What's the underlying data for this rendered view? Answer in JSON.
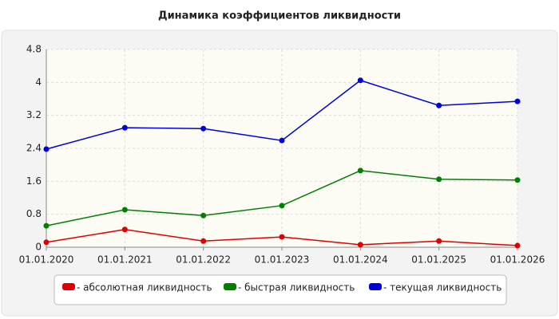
{
  "chart_data": {
    "type": "line",
    "title": "Динамика коэффициентов ликвидности",
    "categories": [
      "01.01.2020",
      "01.01.2021",
      "01.01.2022",
      "01.01.2023",
      "01.01.2024",
      "01.01.2025",
      "01.01.2026"
    ],
    "series": [
      {
        "name": "- абсолютная ликвидность",
        "color": "#e00000",
        "values": [
          0.12,
          0.43,
          0.15,
          0.25,
          0.06,
          0.15,
          0.04
        ]
      },
      {
        "name": "- быстрая ликвидность",
        "color": "#008000",
        "values": [
          0.52,
          0.91,
          0.77,
          1.01,
          1.86,
          1.65,
          1.63
        ]
      },
      {
        "name": "- текущая ликвидность",
        "color": "#0000e0",
        "values": [
          2.38,
          2.9,
          2.88,
          2.59,
          4.05,
          3.44,
          3.54
        ]
      }
    ],
    "ylim": [
      0,
      4.8
    ],
    "yticks": [
      0,
      0.8,
      1.6,
      2.4,
      3.2,
      4,
      4.8
    ],
    "grid": true
  }
}
